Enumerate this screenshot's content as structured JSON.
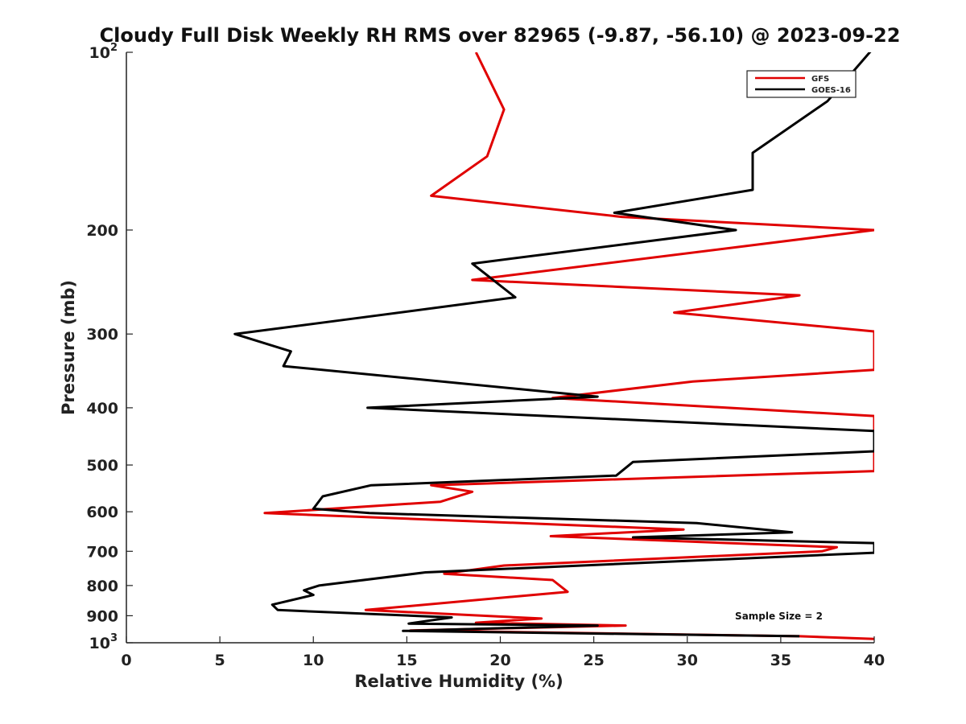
{
  "chart_data": {
    "type": "line",
    "title": "Cloudy Full Disk Weekly RH RMS over 82965 (-9.87, -56.10) @ 2023-09-22",
    "xlabel": "Relative Humidity (%)",
    "ylabel": "Pressure (mb)",
    "xlim": [
      0,
      40
    ],
    "ylim": [
      100,
      1000
    ],
    "yscale": "log",
    "y_reversed": true,
    "grid": false,
    "legend_position": "top-right",
    "annotation": "Sample Size = 2",
    "x_ticks": [
      "0",
      "5",
      "10",
      "15",
      "20",
      "25",
      "30",
      "35",
      "40"
    ],
    "y_ticks": [
      {
        "value": 100,
        "label": "10",
        "sup": "2"
      },
      {
        "value": 200,
        "label": "200"
      },
      {
        "value": 300,
        "label": "300"
      },
      {
        "value": 400,
        "label": "400"
      },
      {
        "value": 500,
        "label": "500"
      },
      {
        "value": 600,
        "label": "600"
      },
      {
        "value": 700,
        "label": "700"
      },
      {
        "value": 800,
        "label": "800"
      },
      {
        "value": 900,
        "label": "900"
      },
      {
        "value": 1000,
        "label": "10",
        "sup": "3"
      }
    ],
    "series": [
      {
        "name": "GFS",
        "color": "#e00000",
        "points": [
          [
            18.7,
            100
          ],
          [
            20.2,
            125
          ],
          [
            19.3,
            150
          ],
          [
            16.3,
            175
          ],
          [
            26.5,
            190
          ],
          [
            40.0,
            200
          ],
          [
            18.5,
            243
          ],
          [
            36.0,
            258
          ],
          [
            29.3,
            276
          ],
          [
            40.0,
            297
          ],
          [
            40.0,
            345
          ],
          [
            30.3,
            361
          ],
          [
            22.8,
            385
          ],
          [
            40.0,
            413
          ],
          [
            40.0,
            512
          ],
          [
            16.3,
            541
          ],
          [
            18.5,
            555
          ],
          [
            16.8,
            577
          ],
          [
            7.4,
            603
          ],
          [
            29.8,
            643
          ],
          [
            22.7,
            660
          ],
          [
            38.0,
            689
          ],
          [
            37.2,
            700
          ],
          [
            20.2,
            740
          ],
          [
            17.0,
            764
          ],
          [
            22.8,
            783
          ],
          [
            23.6,
            820
          ],
          [
            12.8,
            880
          ],
          [
            22.2,
            910
          ],
          [
            18.7,
            925
          ],
          [
            26.7,
            935
          ],
          [
            15.2,
            953
          ],
          [
            36.0,
            975
          ],
          [
            40.0,
            985
          ]
        ]
      },
      {
        "name": "GOES-16",
        "color": "#000000",
        "points": [
          [
            40.0,
            98
          ],
          [
            37.5,
            121
          ],
          [
            33.5,
            148
          ],
          [
            33.5,
            171
          ],
          [
            26.1,
            187
          ],
          [
            32.6,
            200
          ],
          [
            18.5,
            228
          ],
          [
            20.8,
            260
          ],
          [
            11.6,
            284
          ],
          [
            5.8,
            300
          ],
          [
            8.8,
            321
          ],
          [
            8.4,
            340
          ],
          [
            25.2,
            383
          ],
          [
            12.9,
            400
          ],
          [
            40.0,
            438
          ],
          [
            40.0,
            474
          ],
          [
            27.1,
            494
          ],
          [
            26.2,
            521
          ],
          [
            13.1,
            541
          ],
          [
            10.5,
            565
          ],
          [
            10.0,
            593
          ],
          [
            13.0,
            603
          ],
          [
            30.5,
            627
          ],
          [
            35.6,
            650
          ],
          [
            27.1,
            663
          ],
          [
            40.0,
            678
          ],
          [
            40.0,
            704
          ],
          [
            16.0,
            760
          ],
          [
            10.3,
            800
          ],
          [
            9.5,
            815
          ],
          [
            10.0,
            830
          ],
          [
            7.8,
            862
          ],
          [
            8.1,
            880
          ],
          [
            17.4,
            906
          ],
          [
            15.1,
            928
          ],
          [
            25.2,
            935
          ],
          [
            14.8,
            955
          ],
          [
            36.0,
            975
          ]
        ]
      }
    ]
  }
}
